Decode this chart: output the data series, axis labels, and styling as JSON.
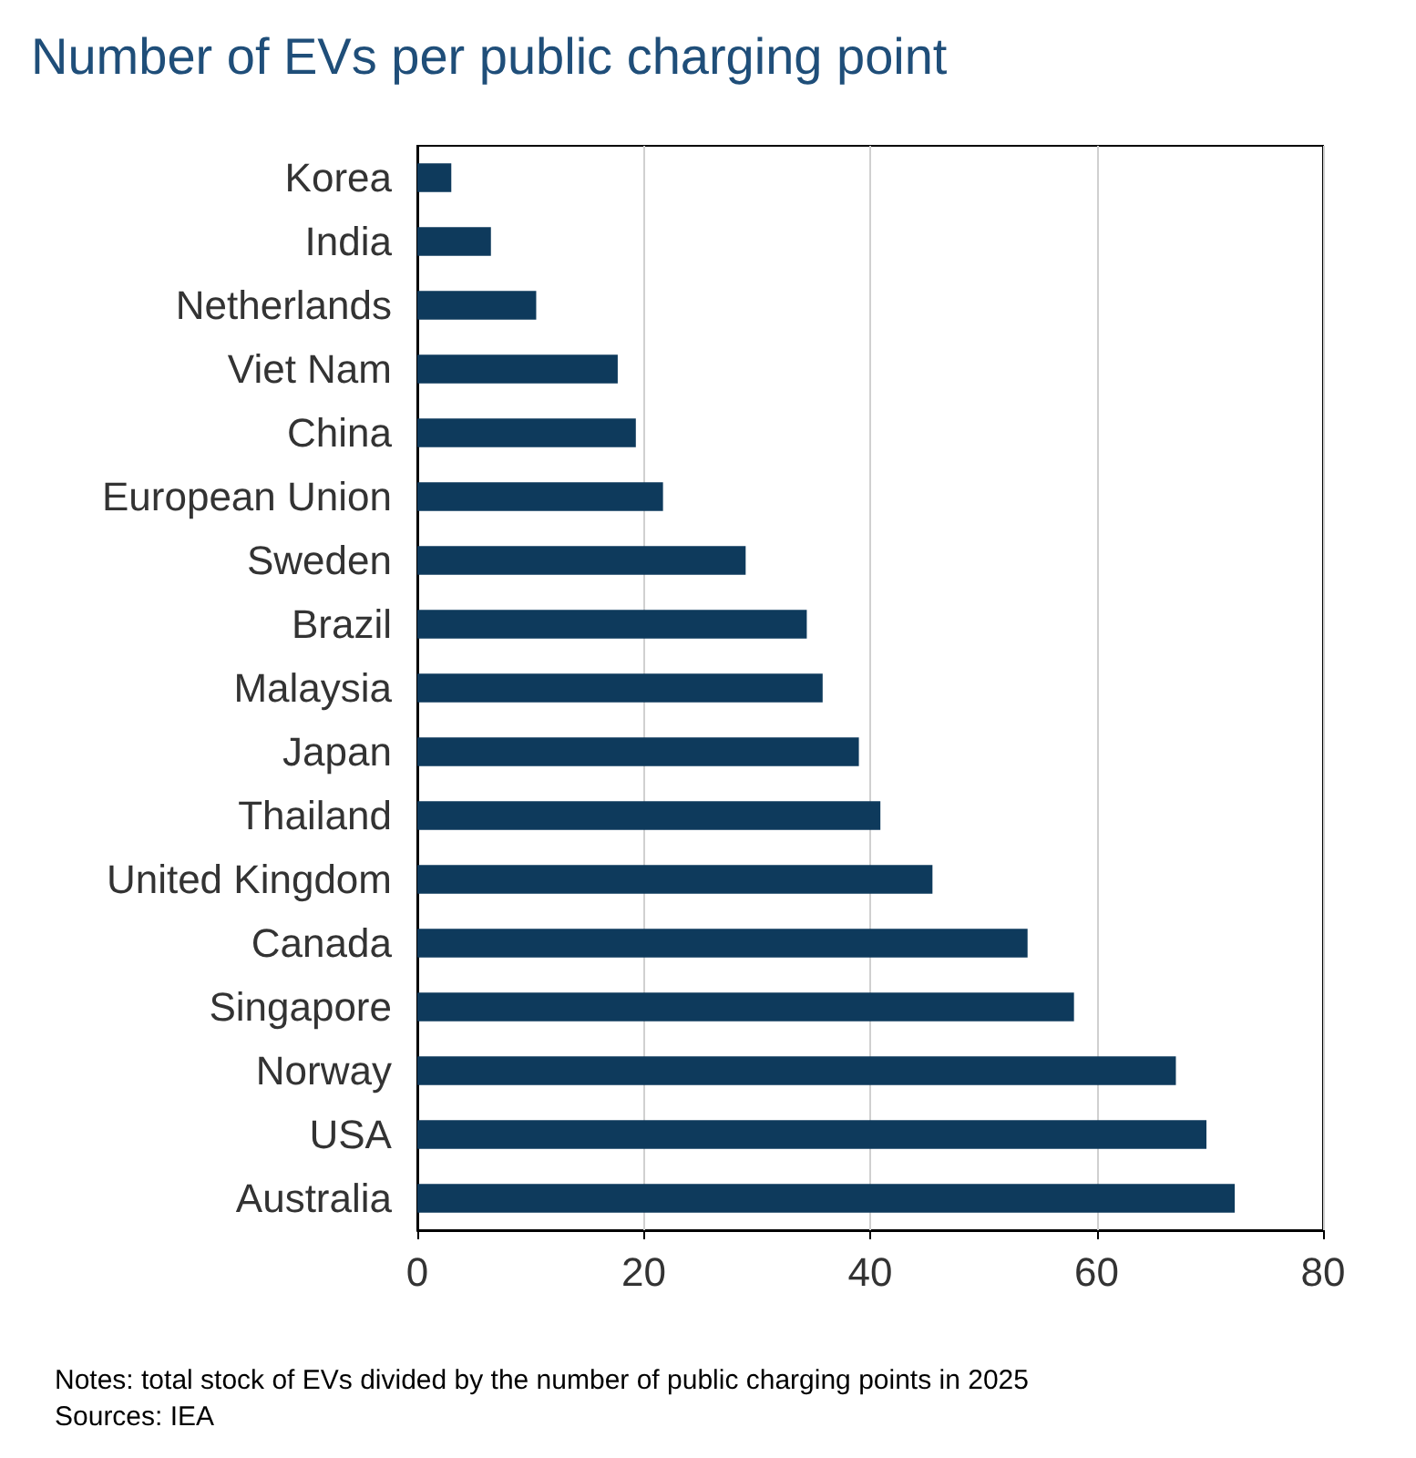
{
  "chart_data": {
    "type": "bar",
    "orientation": "horizontal",
    "title": "Number of EVs per public charging point",
    "categories": [
      "Korea",
      "India",
      "Netherlands",
      "Viet Nam",
      "China",
      "European Union",
      "Sweden",
      "Brazil",
      "Malaysia",
      "Japan",
      "Thailand",
      "United Kingdom",
      "Canada",
      "Singapore",
      "Norway",
      "USA",
      "Australia"
    ],
    "values": [
      3.0,
      6.5,
      10.5,
      17.7,
      19.3,
      21.7,
      29.0,
      34.4,
      35.8,
      39.0,
      40.9,
      45.5,
      53.9,
      58.0,
      67.0,
      69.7,
      72.2
    ],
    "color": "#0e3a5c",
    "xlim": [
      0,
      80
    ],
    "xticks": [
      0,
      20,
      40,
      60,
      80
    ],
    "grid": "x",
    "annotations": [
      "Notes: total stock of EVs divided by the number of public charging points in 2025",
      "Sources: IEA"
    ]
  }
}
